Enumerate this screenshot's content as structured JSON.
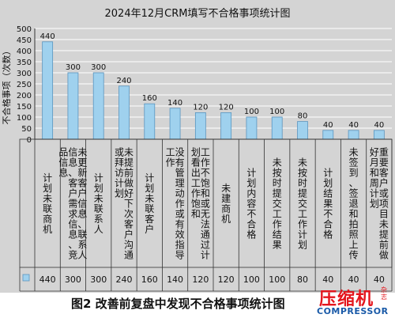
{
  "chart_data": {
    "type": "bar",
    "title": "2024年12月CRM填写不合格事项统计图",
    "ylabel": "不合格事项（次数）",
    "ylim": [
      0,
      500
    ],
    "yticks": [
      0,
      50,
      100,
      150,
      200,
      250,
      300,
      350,
      400,
      450,
      500
    ],
    "grid": true,
    "categories": [
      "计划未联商机",
      "未更新客户信息、联系人信息、客户需求信息、竞品信息",
      "计划未联系人",
      "未提前做好下次客户沟通或拜访计划",
      "计划未联客户",
      "没有管理动作或有效指导工作",
      "工作不饱和或无法通过计划看出工作饱和",
      "未建商机",
      "计划内容不合格",
      "未按时提交工作结果",
      "未按时提交工作计划",
      "计划结果不合格",
      "未签到、签退和拍照上传",
      "重要客户或项目未提前做好月和周计划"
    ],
    "values": [
      440,
      300,
      300,
      240,
      160,
      140,
      120,
      120,
      100,
      100,
      80,
      40,
      40,
      40
    ],
    "bar_color": "#9fd1ee",
    "table_values": [
      "440",
      "300",
      "300",
      "240",
      "160",
      "140",
      "120",
      "120",
      "100",
      "100",
      "80",
      "40",
      "40",
      "40"
    ]
  },
  "caption": "图2  改善前复盘中发现不合格事项统计图",
  "logo": {
    "cn": "压缩机",
    "cn_small": "杂志",
    "en": "COMPRESSOR"
  },
  "colors": {
    "background": "#d4d4d4",
    "bar": "#9fd1ee",
    "bar_stroke": "#5a95bf",
    "grid": "#ffffff",
    "logo_red": "#e4161d",
    "logo_blue": "#1a5aa8"
  }
}
